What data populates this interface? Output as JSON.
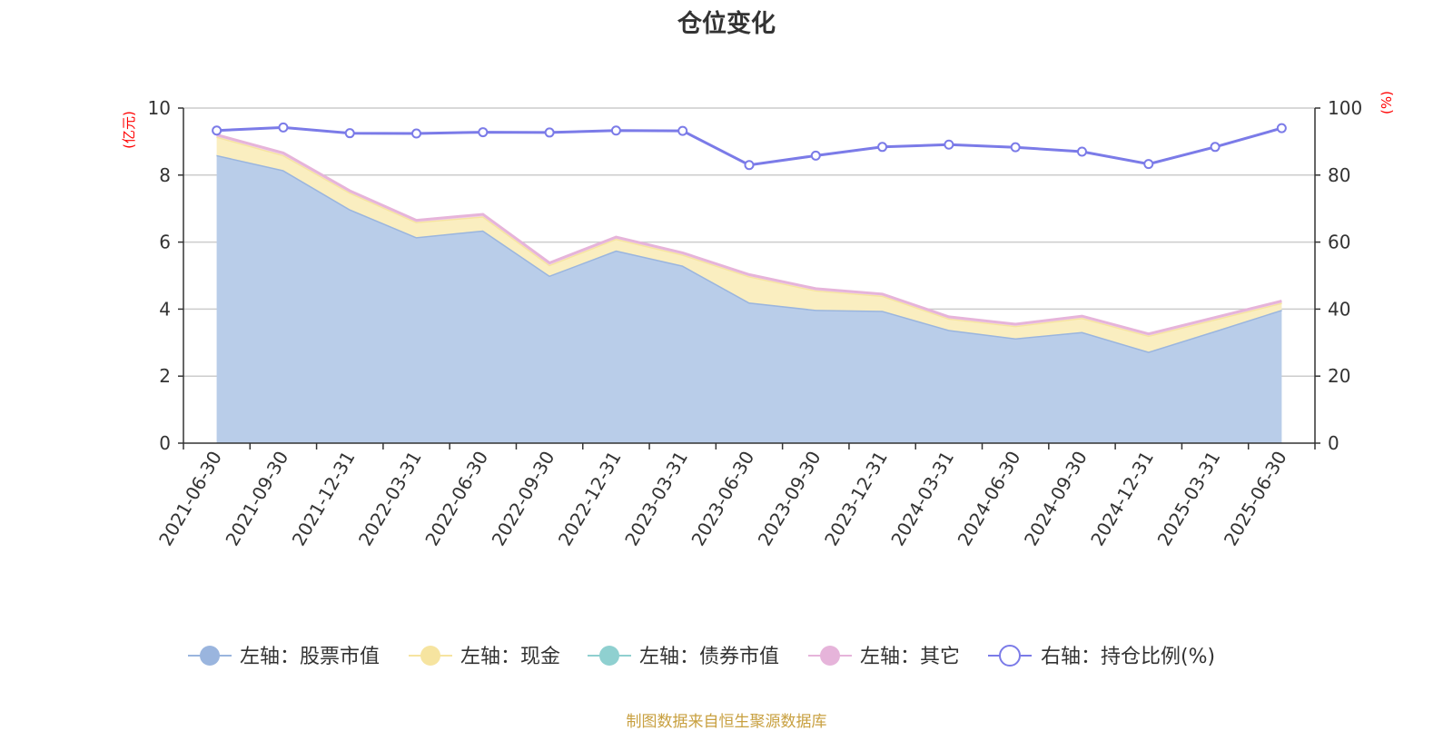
{
  "chart_data": {
    "type": "area",
    "title": "仓位变化",
    "categories": [
      "2021-06-30",
      "2021-09-30",
      "2021-12-31",
      "2022-03-31",
      "2022-06-30",
      "2022-09-30",
      "2022-12-31",
      "2023-03-31",
      "2023-06-30",
      "2023-09-30",
      "2023-12-31",
      "2024-03-31",
      "2024-06-30",
      "2024-09-30",
      "2024-12-31",
      "2025-03-31",
      "2025-06-30"
    ],
    "left_axis": {
      "unit": "(亿元)",
      "min": 0,
      "max": 10,
      "ticks": [
        "0",
        "2",
        "4",
        "6",
        "8",
        "10"
      ]
    },
    "right_axis": {
      "unit": "(%)",
      "min": 0,
      "max": 100,
      "ticks": [
        "0",
        "20",
        "40",
        "60",
        "80",
        "100"
      ]
    },
    "grid": true,
    "legend_position": "bottom",
    "series": [
      {
        "name": "左轴：股票市值",
        "axis": "left",
        "stack": true,
        "color": "#9ab5de",
        "fill": "#b9cde9",
        "values": [
          8.6,
          8.15,
          6.98,
          6.15,
          6.35,
          5.0,
          5.75,
          5.3,
          4.2,
          3.98,
          3.95,
          3.38,
          3.13,
          3.32,
          2.73,
          3.35,
          3.98
        ]
      },
      {
        "name": "左轴：现金",
        "axis": "left",
        "stack": true,
        "color": "#f6e4a0",
        "fill": "#faeec0",
        "values": [
          0.55,
          0.45,
          0.5,
          0.45,
          0.42,
          0.32,
          0.35,
          0.33,
          0.78,
          0.58,
          0.45,
          0.34,
          0.37,
          0.42,
          0.48,
          0.35,
          0.21
        ]
      },
      {
        "name": "左轴：债券市值",
        "axis": "left",
        "stack": true,
        "color": "#8fd0d0",
        "fill": "#bfe4e4",
        "values": [
          0,
          0,
          0,
          0,
          0,
          0,
          0,
          0,
          0,
          0,
          0,
          0,
          0,
          0,
          0,
          0,
          0
        ]
      },
      {
        "name": "左轴：其它",
        "axis": "left",
        "stack": true,
        "color": "#e6b4da",
        "fill": "#f2d3ea",
        "values": [
          0.05,
          0.06,
          0.05,
          0.05,
          0.06,
          0.06,
          0.05,
          0.05,
          0.05,
          0.05,
          0.05,
          0.05,
          0.05,
          0.05,
          0.05,
          0.05,
          0.05
        ]
      },
      {
        "name": "右轴：持仓比例(%)",
        "axis": "right",
        "stack": false,
        "color": "#7b7be8",
        "fill": "none",
        "values": [
          93.3,
          94.2,
          92.5,
          92.4,
          92.8,
          92.7,
          93.3,
          93.2,
          83.0,
          85.8,
          88.4,
          89.1,
          88.3,
          87.0,
          83.3,
          88.4,
          94.0
        ]
      }
    ]
  },
  "source_text": "制图数据来自恒生聚源数据库"
}
